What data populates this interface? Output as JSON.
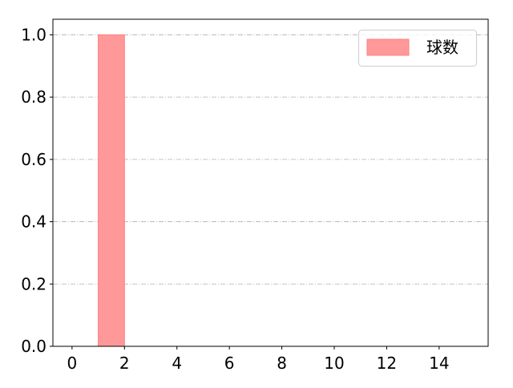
{
  "chart_data": {
    "type": "bar",
    "title": "",
    "xlabel": "",
    "ylabel": "",
    "bins": [
      {
        "x0": 1,
        "x1": 2,
        "value": 1.0
      }
    ],
    "series": [
      {
        "name": "球数",
        "color": "#ff9999",
        "edge_color": "#ff7f7f"
      }
    ],
    "xlim": [
      -0.73,
      15.87
    ],
    "ylim": [
      0,
      1.05
    ],
    "xticks": [
      0,
      2,
      4,
      6,
      8,
      10,
      12,
      14
    ],
    "xtick_labels": [
      "0",
      "2",
      "4",
      "6",
      "8",
      "10",
      "12",
      "14"
    ],
    "yticks": [
      0,
      0.2,
      0.4,
      0.6,
      0.8,
      1.0
    ],
    "ytick_labels": [
      "0.0",
      "0.2",
      "0.4",
      "0.6",
      "0.8",
      "1.0"
    ],
    "grid": {
      "axis": "y",
      "style": "dash-dot",
      "color": "#b0b0b0"
    },
    "legend": {
      "position": "top-right",
      "entries": [
        "球数"
      ]
    }
  }
}
